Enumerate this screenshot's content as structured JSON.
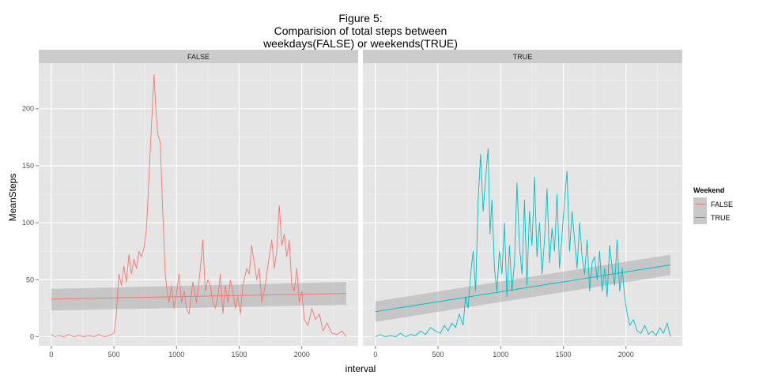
{
  "chart_data": {
    "type": "line",
    "title_lines": [
      "Figure 5:",
      "Comparision of total steps between",
      "weekdays(FALSE) or weekends(TRUE)"
    ],
    "xlabel": "interval",
    "ylabel": "MeanSteps",
    "xlim": [
      -100,
      2450
    ],
    "ylim": [
      -8,
      240
    ],
    "x_ticks": [
      0,
      500,
      1000,
      1500,
      2000
    ],
    "y_ticks": [
      0,
      50,
      100,
      150,
      200
    ],
    "grid": true,
    "legend": {
      "title": "Weekend",
      "position": "right",
      "entries": [
        {
          "label": "FALSE",
          "color": "#F8766D"
        },
        {
          "label": "TRUE",
          "color": "#00BFC4"
        }
      ]
    },
    "panels": [
      {
        "strip": "FALSE",
        "color": "#F8766D",
        "series": {
          "name": "FALSE",
          "x": [
            0,
            30,
            60,
            100,
            140,
            180,
            220,
            260,
            300,
            340,
            380,
            420,
            460,
            500,
            520,
            540,
            560,
            580,
            600,
            620,
            640,
            660,
            680,
            700,
            720,
            740,
            760,
            780,
            800,
            820,
            835,
            850,
            870,
            890,
            910,
            925,
            940,
            960,
            980,
            1000,
            1020,
            1040,
            1060,
            1080,
            1100,
            1130,
            1160,
            1190,
            1210,
            1230,
            1250,
            1270,
            1290,
            1310,
            1330,
            1350,
            1370,
            1390,
            1410,
            1430,
            1450,
            1470,
            1490,
            1510,
            1530,
            1560,
            1580,
            1600,
            1620,
            1640,
            1660,
            1680,
            1700,
            1720,
            1740,
            1760,
            1780,
            1800,
            1820,
            1840,
            1860,
            1880,
            1900,
            1920,
            1940,
            1960,
            1980,
            2000,
            2020,
            2050,
            2080,
            2110,
            2140,
            2170,
            2200,
            2240,
            2280,
            2320,
            2355
          ],
          "y": [
            2,
            0,
            1,
            0,
            2,
            0,
            1,
            0,
            1,
            0,
            2,
            0,
            1,
            3,
            20,
            55,
            45,
            62,
            48,
            72,
            55,
            68,
            60,
            75,
            70,
            78,
            95,
            140,
            185,
            230,
            200,
            178,
            170,
            110,
            55,
            40,
            30,
            45,
            25,
            38,
            55,
            30,
            40,
            25,
            20,
            48,
            30,
            60,
            85,
            40,
            50,
            45,
            30,
            25,
            35,
            55,
            20,
            45,
            30,
            50,
            40,
            25,
            35,
            20,
            45,
            60,
            55,
            80,
            65,
            50,
            60,
            30,
            40,
            55,
            70,
            85,
            60,
            75,
            115,
            80,
            90,
            70,
            85,
            45,
            40,
            60,
            30,
            40,
            15,
            10,
            25,
            15,
            20,
            5,
            12,
            3,
            2,
            5,
            0
          ]
        },
        "trend": {
          "x": [
            0,
            2355
          ],
          "y": [
            33,
            38
          ],
          "band_lower": [
            23,
            28
          ],
          "band_upper": [
            42,
            48
          ]
        }
      },
      {
        "strip": "TRUE",
        "color": "#00BFC4",
        "series": {
          "name": "TRUE",
          "x": [
            0,
            40,
            80,
            120,
            160,
            200,
            240,
            280,
            320,
            360,
            400,
            440,
            480,
            520,
            550,
            580,
            610,
            640,
            670,
            700,
            720,
            740,
            760,
            780,
            800,
            820,
            840,
            860,
            880,
            900,
            915,
            930,
            950,
            970,
            990,
            1010,
            1030,
            1050,
            1070,
            1090,
            1110,
            1130,
            1150,
            1170,
            1190,
            1210,
            1230,
            1250,
            1270,
            1290,
            1310,
            1330,
            1350,
            1370,
            1390,
            1410,
            1430,
            1450,
            1470,
            1490,
            1510,
            1530,
            1550,
            1570,
            1590,
            1610,
            1630,
            1650,
            1670,
            1690,
            1710,
            1730,
            1750,
            1770,
            1790,
            1810,
            1830,
            1850,
            1870,
            1890,
            1910,
            1930,
            1950,
            1970,
            1990,
            2010,
            2030,
            2060,
            2090,
            2120,
            2150,
            2180,
            2210,
            2240,
            2270,
            2300,
            2330,
            2355
          ],
          "y": [
            0,
            2,
            0,
            1,
            0,
            3,
            0,
            2,
            1,
            5,
            2,
            8,
            5,
            3,
            10,
            5,
            12,
            8,
            20,
            10,
            35,
            25,
            55,
            75,
            40,
            120,
            160,
            110,
            140,
            165,
            90,
            120,
            60,
            40,
            75,
            55,
            100,
            35,
            80,
            40,
            65,
            135,
            80,
            55,
            120,
            45,
            110,
            80,
            140,
            70,
            100,
            55,
            85,
            130,
            65,
            95,
            75,
            125,
            60,
            90,
            120,
            145,
            75,
            110,
            85,
            60,
            100,
            70,
            55,
            85,
            40,
            65,
            70,
            50,
            75,
            40,
            60,
            35,
            80,
            60,
            45,
            85,
            40,
            60,
            35,
            20,
            10,
            15,
            5,
            3,
            10,
            2,
            5,
            1,
            8,
            3,
            12,
            0
          ]
        },
        "trend": {
          "x": [
            0,
            2355
          ],
          "y": [
            22,
            63
          ],
          "band_lower": [
            13,
            54
          ],
          "band_upper": [
            31,
            72
          ]
        }
      }
    ]
  }
}
